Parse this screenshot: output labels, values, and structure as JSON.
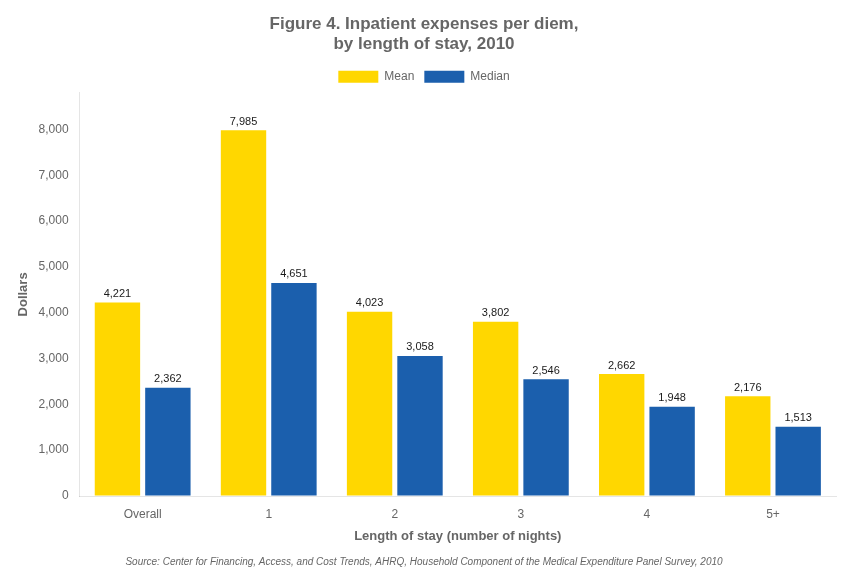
{
  "chart_data": {
    "type": "bar",
    "title": "Figure 4. Inpatient expenses per diem,\nby length of stay, 2010",
    "xlabel": "Length of stay (number of nights)",
    "ylabel": "Dollars",
    "categories": [
      "Overall",
      "1",
      "2",
      "3",
      "4",
      "5+"
    ],
    "series": [
      {
        "name": "Mean",
        "color": "#FFD700",
        "values": [
          4221,
          7985,
          4023,
          3802,
          2662,
          2176
        ],
        "value_labels": [
          "4,221",
          "7,985",
          "4,023",
          "3,802",
          "2,662",
          "2,176"
        ]
      },
      {
        "name": "Median",
        "color": "#1B5FAD",
        "values": [
          2362,
          4651,
          3058,
          2546,
          1948,
          1513
        ],
        "value_labels": [
          "2,362",
          "4,651",
          "3,058",
          "2,546",
          "1,948",
          "1,513"
        ]
      }
    ],
    "ylim": [
      0,
      8800
    ],
    "yticks": [
      0,
      {
        "value": 1000,
        "label": "1,000"
      },
      {
        "value": 2000,
        "label": "2,000"
      },
      {
        "value": 3000,
        "label": "3,000"
      },
      {
        "value": 4000,
        "label": "4,000"
      },
      {
        "value": 5000,
        "label": "5,000"
      },
      {
        "value": 6000,
        "label": "6,000"
      },
      {
        "value": 7000,
        "label": "7,000"
      },
      {
        "value": 8000,
        "label": "8,000"
      }
    ],
    "annotations": [
      "Source: Center for Financing, Access, and Cost Trends, AHRQ, Household Component of the Medical Expenditure Panel Survey, 2010"
    ],
    "data_labels": true,
    "legend": "top",
    "grid": false
  }
}
